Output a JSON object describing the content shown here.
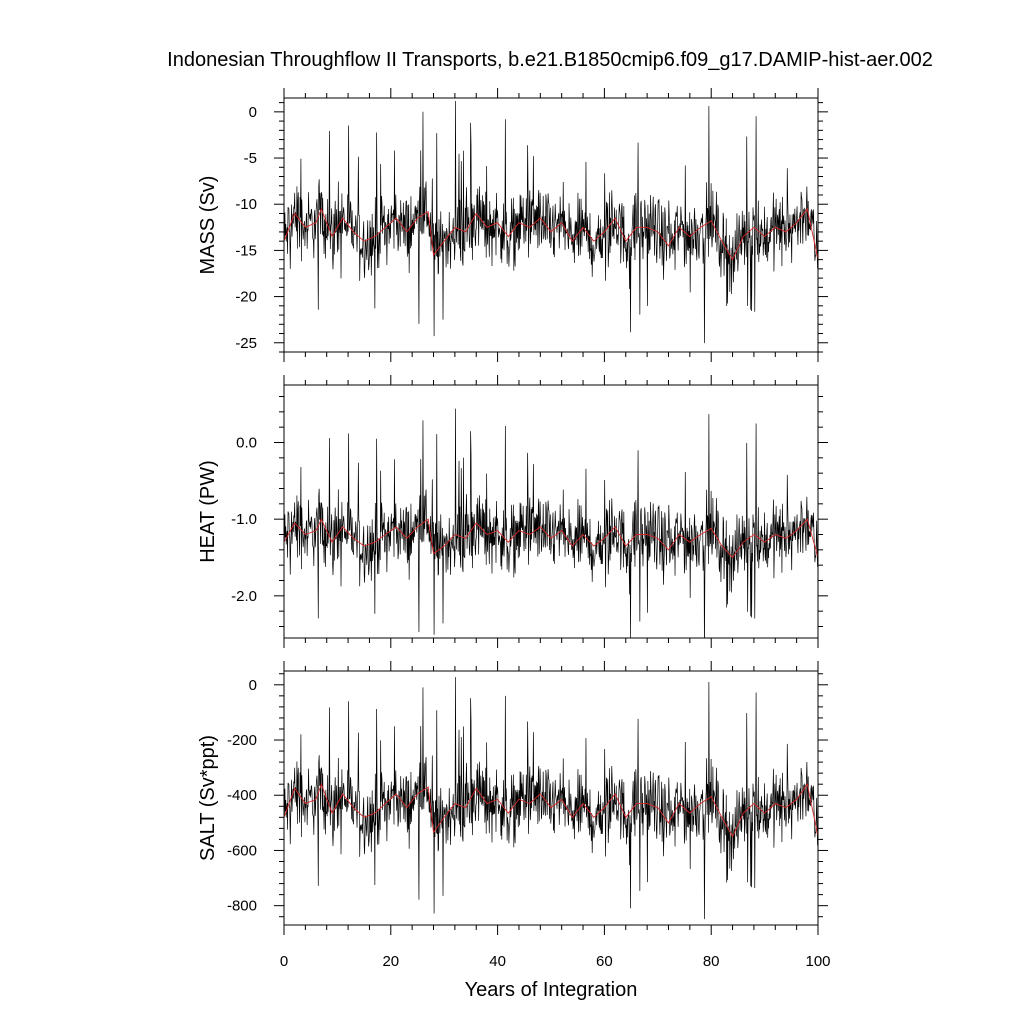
{
  "figure": {
    "title": "Indonesian Throughflow II Transports, b.e21.B1850cmip6.f09_g17.DAMIP-hist-aer.002",
    "xlabel": "Years of Integration",
    "x_ticks": [
      "0",
      "20",
      "40",
      "60",
      "80",
      "100"
    ]
  },
  "chart_data": [
    {
      "type": "line",
      "ylabel": "MASS (Sv)",
      "xlim": [
        0,
        100
      ],
      "ylim": [
        -26,
        1.5
      ],
      "y_ticks": [
        0,
        -5,
        -10,
        -15,
        -20,
        -25
      ],
      "y_tick_labels": [
        "0",
        "-5",
        "-10",
        "-15",
        "-20",
        "-25"
      ],
      "series": [
        {
          "color": "#000000",
          "description": "monthly values, highly variable, mostly between -20 and -5, extremes near -25.6 and 0.5"
        },
        {
          "color": "#d62728",
          "x": [
            0,
            2,
            4,
            6,
            7,
            9,
            11,
            13,
            15,
            17,
            19,
            21,
            23,
            25,
            27,
            28,
            30,
            32,
            34,
            36,
            38,
            40,
            42,
            44,
            46,
            48,
            50,
            52,
            54,
            56,
            58,
            60,
            62,
            64,
            66,
            68,
            70,
            72,
            74,
            76,
            78,
            80,
            82,
            84,
            86,
            88,
            90,
            92,
            94,
            96,
            98,
            100
          ],
          "y": [
            -14,
            -11,
            -12.5,
            -12,
            -10.5,
            -13.5,
            -11.5,
            -13,
            -14,
            -13.5,
            -12.5,
            -11.5,
            -13,
            -11.5,
            -10.8,
            -15.5,
            -14,
            -12.5,
            -13,
            -11,
            -12.5,
            -12,
            -13.5,
            -12,
            -12.5,
            -11.5,
            -13,
            -12,
            -14,
            -12.5,
            -14,
            -13,
            -11.5,
            -14,
            -12.5,
            -12.5,
            -13,
            -14.5,
            -12.5,
            -13.5,
            -12.5,
            -11.8,
            -14,
            -16,
            -13.5,
            -12.5,
            -13.5,
            -12.5,
            -13,
            -12,
            -10.5,
            -16
          ]
        }
      ]
    },
    {
      "type": "line",
      "ylabel": "HEAT (PW)",
      "xlim": [
        0,
        100
      ],
      "ylim": [
        -2.55,
        0.75
      ],
      "y_ticks": [
        0,
        -1,
        -2
      ],
      "y_tick_labels": [
        "0.0",
        "-1.0",
        "-2.0"
      ],
      "series": [
        {
          "color": "#000000",
          "description": "monthly values, mostly between -2.0 and -0.4, extremes near -2.55 and 0.7"
        },
        {
          "color": "#d62728",
          "x": [
            0,
            2,
            4,
            6,
            7,
            9,
            11,
            13,
            15,
            17,
            19,
            21,
            23,
            25,
            27,
            28,
            30,
            32,
            34,
            36,
            38,
            40,
            42,
            44,
            46,
            48,
            50,
            52,
            54,
            56,
            58,
            60,
            62,
            64,
            66,
            68,
            70,
            72,
            74,
            76,
            78,
            80,
            82,
            84,
            86,
            88,
            90,
            92,
            94,
            96,
            98,
            100
          ],
          "y": [
            -1.3,
            -1.05,
            -1.2,
            -1.15,
            -1.0,
            -1.3,
            -1.1,
            -1.25,
            -1.35,
            -1.3,
            -1.2,
            -1.1,
            -1.25,
            -1.1,
            -1.0,
            -1.45,
            -1.35,
            -1.2,
            -1.25,
            -1.05,
            -1.2,
            -1.15,
            -1.3,
            -1.15,
            -1.2,
            -1.1,
            -1.25,
            -1.15,
            -1.35,
            -1.2,
            -1.35,
            -1.25,
            -1.1,
            -1.35,
            -1.2,
            -1.2,
            -1.25,
            -1.4,
            -1.2,
            -1.3,
            -1.2,
            -1.12,
            -1.35,
            -1.5,
            -1.3,
            -1.2,
            -1.3,
            -1.2,
            -1.25,
            -1.15,
            -1.0,
            -1.5
          ]
        }
      ]
    },
    {
      "type": "line",
      "ylabel": "SALT (Sv*ppt)",
      "xlim": [
        0,
        100
      ],
      "ylim": [
        -870,
        50
      ],
      "y_ticks": [
        0,
        -200,
        -400,
        -600,
        -800
      ],
      "y_tick_labels": [
        "0",
        "-200",
        "-400",
        "-600",
        "-800"
      ],
      "series": [
        {
          "color": "#000000",
          "description": "monthly values, mostly between -700 and -150, extremes near -860 and 30"
        },
        {
          "color": "#d62728",
          "x": [
            0,
            2,
            4,
            6,
            7,
            9,
            11,
            13,
            15,
            17,
            19,
            21,
            23,
            25,
            27,
            28,
            30,
            32,
            34,
            36,
            38,
            40,
            42,
            44,
            46,
            48,
            50,
            52,
            54,
            56,
            58,
            60,
            62,
            64,
            66,
            68,
            70,
            72,
            74,
            76,
            78,
            80,
            82,
            84,
            86,
            88,
            90,
            92,
            94,
            96,
            98,
            100
          ],
          "y": [
            -480,
            -375,
            -430,
            -415,
            -360,
            -465,
            -395,
            -445,
            -480,
            -465,
            -430,
            -395,
            -445,
            -395,
            -370,
            -535,
            -480,
            -430,
            -445,
            -375,
            -430,
            -415,
            -465,
            -415,
            -430,
            -395,
            -445,
            -415,
            -480,
            -430,
            -480,
            -445,
            -395,
            -480,
            -430,
            -430,
            -445,
            -500,
            -430,
            -465,
            -430,
            -405,
            -480,
            -550,
            -465,
            -430,
            -465,
            -430,
            -445,
            -415,
            -360,
            -550
          ]
        }
      ]
    }
  ]
}
